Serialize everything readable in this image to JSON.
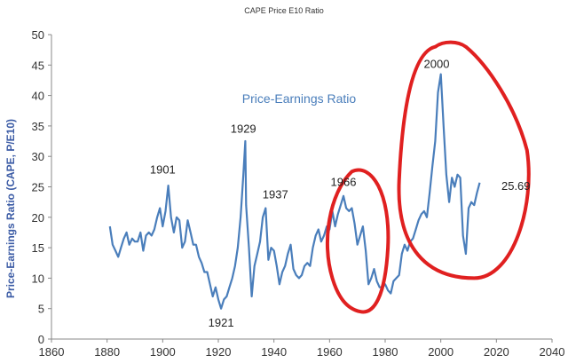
{
  "chart_data": {
    "type": "line",
    "title": "CAPE Price E10 Ratio",
    "xlabel": "",
    "ylabel": "Price-Earnings Ratio (CAPE, P/E10)",
    "xlim": [
      1860,
      2040
    ],
    "ylim": [
      0,
      50
    ],
    "xticks": [
      1860,
      1880,
      1900,
      1920,
      1940,
      1960,
      1980,
      2000,
      2020,
      2040
    ],
    "yticks": [
      0,
      5,
      10,
      15,
      20,
      25,
      30,
      35,
      40,
      45,
      50
    ],
    "grid": false,
    "series": [
      {
        "name": "Price-Earnings Ratio",
        "color": "#4a7ebb",
        "x": [
          1881,
          1882,
          1883,
          1884,
          1885,
          1886,
          1887,
          1888,
          1889,
          1890,
          1891,
          1892,
          1893,
          1894,
          1895,
          1896,
          1897,
          1898,
          1899,
          1900,
          1901,
          1902,
          1903,
          1904,
          1905,
          1906,
          1907,
          1908,
          1909,
          1910,
          1911,
          1912,
          1913,
          1914,
          1915,
          1916,
          1917,
          1918,
          1919,
          1920,
          1921,
          1922,
          1923,
          1924,
          1925,
          1926,
          1927,
          1928,
          1929,
          1929.7,
          1930,
          1931,
          1932,
          1933,
          1934,
          1935,
          1936,
          1937,
          1938,
          1939,
          1940,
          1941,
          1942,
          1943,
          1944,
          1945,
          1946,
          1947,
          1948,
          1949,
          1950,
          1951,
          1952,
          1953,
          1954,
          1955,
          1956,
          1957,
          1958,
          1959,
          1960,
          1961,
          1962,
          1963,
          1964,
          1965,
          1966,
          1967,
          1968,
          1969,
          1970,
          1971,
          1972,
          1973,
          1974,
          1975,
          1976,
          1977,
          1978,
          1979,
          1980,
          1981,
          1982,
          1983,
          1984,
          1985,
          1986,
          1987,
          1988,
          1989,
          1990,
          1991,
          1992,
          1993,
          1994,
          1995,
          1996,
          1997,
          1998,
          1999,
          2000,
          2001,
          2002,
          2003,
          2004,
          2005,
          2006,
          2007,
          2008,
          2009,
          2010,
          2011,
          2012,
          2013,
          2014
        ],
        "y": [
          18.5,
          15.5,
          14.5,
          13.5,
          15,
          16.5,
          17.5,
          15.5,
          16.5,
          16,
          16,
          17.5,
          14.5,
          17,
          17.5,
          17,
          18,
          20,
          21.5,
          18.5,
          21,
          25.2,
          20,
          17.5,
          20,
          19.5,
          15,
          16,
          19.5,
          17.5,
          15.5,
          15.5,
          13.5,
          12.5,
          11,
          11,
          9,
          7,
          8.5,
          6.5,
          5,
          6.5,
          7,
          8.5,
          10,
          12,
          15,
          20,
          27,
          32.5,
          22,
          15,
          7,
          12,
          14,
          16,
          20,
          21.5,
          13,
          15,
          14.5,
          12,
          9,
          11,
          12,
          14,
          15.5,
          11.5,
          10.5,
          10,
          10.5,
          12,
          12.5,
          12,
          15,
          17,
          18,
          16,
          17,
          18.5,
          18,
          21,
          18.5,
          20.5,
          22,
          23.5,
          21.5,
          21,
          21.5,
          19,
          15.5,
          17,
          18.5,
          14.5,
          9,
          10,
          11.5,
          9.5,
          8.5,
          8.5,
          9,
          8,
          7.5,
          9.5,
          10,
          10.5,
          14,
          15.5,
          14.5,
          16,
          16.5,
          18,
          19.5,
          20.5,
          21,
          20,
          24,
          28.5,
          32.5,
          40.5,
          43.5,
          35,
          27,
          22.5,
          26.5,
          25,
          27,
          26.5,
          17,
          14,
          21.5,
          22.5,
          22,
          24,
          25.69
        ]
      }
    ],
    "annotations": [
      {
        "label": "1901",
        "x": 1901,
        "y": 25.2
      },
      {
        "label": "1921",
        "x": 1921,
        "y": 5
      },
      {
        "label": "1929",
        "x": 1929,
        "y": 32.5
      },
      {
        "label": "1937",
        "x": 1937,
        "y": 21.5
      },
      {
        "label": "1966",
        "x": 1966,
        "y": 23.5
      },
      {
        "label": "2000",
        "x": 2000,
        "y": 43.5
      },
      {
        "label": "25.69",
        "x": 2014,
        "y": 25.69
      }
    ],
    "highlight_color": "#e02020"
  }
}
